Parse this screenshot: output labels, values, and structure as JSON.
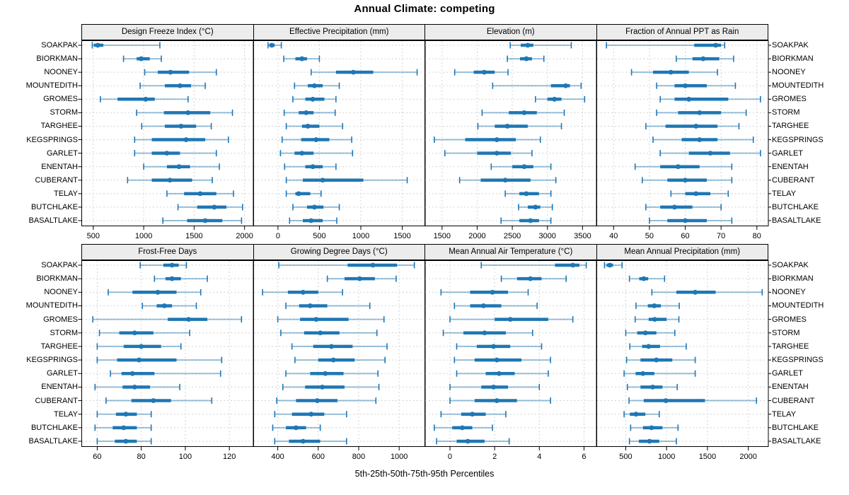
{
  "title": "Annual Climate: competing",
  "axis_label": "5th-25th-50th-75th-95th Percentiles",
  "colors": {
    "accent": "#1f77b4",
    "whisker": "rgba(31,119,180,0.45)",
    "strip_bg": "#ececec",
    "grid": "#d4d4d4",
    "border": "#000000",
    "tick": "#000000"
  },
  "sites": [
    "SOAKPAK",
    "BIORKMAN",
    "NOONEY",
    "MOUNTEDITH",
    "GROMES",
    "STORM",
    "TARGHEE",
    "KEGSPRINGS",
    "GARLET",
    "ENENTAH",
    "CUBERANT",
    "TELAY",
    "BUTCHLAKE",
    "BASALTLAKE"
  ],
  "chart_data": {
    "type": "dotplot",
    "subtype": "percentile-intervals",
    "percentiles": [
      5,
      25,
      50,
      75,
      95
    ],
    "legend_note": "thin segments 5th-25th and 75th-95th, thick bar 25th-75th, dot at median",
    "grid": "dashed",
    "panels": [
      {
        "title": "Design Freeze Index (°C)",
        "xlim": [
          382,
          2083
        ],
        "ticks": [
          {
            "v": 500,
            "label": "500"
          },
          {
            "v": 1000,
            "label": "1000"
          },
          {
            "v": 1500,
            "label": "1500"
          },
          {
            "v": 2000,
            "label": "2000"
          }
        ],
        "values": [
          [
            490,
            505,
            545,
            600,
            1160
          ],
          [
            800,
            930,
            975,
            1060,
            1175
          ],
          [
            1010,
            1140,
            1265,
            1450,
            1720
          ],
          [
            965,
            1210,
            1360,
            1470,
            1610
          ],
          [
            570,
            740,
            1020,
            1110,
            1440
          ],
          [
            930,
            1200,
            1440,
            1660,
            1880
          ],
          [
            980,
            1210,
            1370,
            1520,
            1670
          ],
          [
            910,
            1080,
            1420,
            1610,
            1840
          ],
          [
            910,
            1080,
            1230,
            1360,
            1720
          ],
          [
            1000,
            1230,
            1350,
            1460,
            1750
          ],
          [
            840,
            1080,
            1260,
            1480,
            1680
          ],
          [
            1230,
            1400,
            1560,
            1720,
            1890
          ],
          [
            1340,
            1530,
            1700,
            1820,
            1980
          ],
          [
            1190,
            1430,
            1610,
            1780,
            1970
          ]
        ]
      },
      {
        "title": "Effective Precipitation (mm)",
        "xlim": [
          -298,
          1773
        ],
        "ticks": [
          {
            "v": 0,
            "label": "0"
          },
          {
            "v": 500,
            "label": "500"
          },
          {
            "v": 1000,
            "label": "1000"
          },
          {
            "v": 1500,
            "label": "1500"
          }
        ],
        "values": [
          [
            -120,
            -105,
            -75,
            -40,
            40
          ],
          [
            70,
            210,
            290,
            350,
            500
          ],
          [
            400,
            700,
            910,
            1150,
            1680
          ],
          [
            200,
            360,
            440,
            540,
            740
          ],
          [
            180,
            330,
            420,
            560,
            700
          ],
          [
            75,
            250,
            340,
            430,
            690
          ],
          [
            100,
            290,
            360,
            500,
            780
          ],
          [
            50,
            280,
            460,
            620,
            890
          ],
          [
            30,
            200,
            290,
            430,
            900
          ],
          [
            80,
            330,
            420,
            540,
            700
          ],
          [
            100,
            300,
            540,
            1030,
            1560
          ],
          [
            100,
            210,
            250,
            390,
            520
          ],
          [
            180,
            350,
            440,
            550,
            740
          ],
          [
            140,
            300,
            400,
            540,
            710
          ]
        ]
      },
      {
        "title": "Elevation (m)",
        "xlim": [
          1250,
          3693
        ],
        "ticks": [
          {
            "v": 1500,
            "label": "1500"
          },
          {
            "v": 2000,
            "label": "2000"
          },
          {
            "v": 2500,
            "label": "2500"
          },
          {
            "v": 3000,
            "label": "3000"
          },
          {
            "v": 3500,
            "label": "3500"
          }
        ],
        "values": [
          [
            2470,
            2620,
            2720,
            2800,
            3340
          ],
          [
            2430,
            2610,
            2700,
            2780,
            2950
          ],
          [
            1680,
            1950,
            2100,
            2250,
            2440
          ],
          [
            2220,
            3050,
            3260,
            3320,
            3480
          ],
          [
            2830,
            3000,
            3100,
            3200,
            3530
          ],
          [
            2070,
            2450,
            2670,
            2850,
            3240
          ],
          [
            2010,
            2250,
            2430,
            2720,
            3200
          ],
          [
            1390,
            1830,
            2280,
            2550,
            2900
          ],
          [
            1540,
            2000,
            2280,
            2480,
            2780
          ],
          [
            2200,
            2500,
            2670,
            2800,
            3050
          ],
          [
            1750,
            2050,
            2400,
            2760,
            3120
          ],
          [
            2400,
            2600,
            2700,
            2880,
            3050
          ],
          [
            2590,
            2720,
            2830,
            2900,
            3070
          ],
          [
            2340,
            2600,
            2760,
            2880,
            3050
          ]
        ]
      },
      {
        "title": "Fraction of Annual PPT as Rain",
        "xlim": [
          35.2,
          83.1
        ],
        "ticks": [
          {
            "v": 40,
            "label": "40"
          },
          {
            "v": 50,
            "label": "50"
          },
          {
            "v": 60,
            "label": "60"
          },
          {
            "v": 70,
            "label": "70"
          },
          {
            "v": 80,
            "label": "80"
          }
        ],
        "values": [
          [
            38,
            62.5,
            68.5,
            70,
            71
          ],
          [
            57.5,
            62,
            65,
            69.5,
            73.5
          ],
          [
            45,
            51,
            56,
            61,
            69
          ],
          [
            52,
            57,
            60,
            66,
            74
          ],
          [
            53,
            57,
            61,
            72,
            81
          ],
          [
            52,
            58,
            64,
            70,
            77
          ],
          [
            49,
            54.5,
            63,
            69,
            75
          ],
          [
            51,
            59,
            64,
            69,
            79
          ],
          [
            53,
            61,
            67,
            72.5,
            81
          ],
          [
            46,
            53,
            58,
            64,
            73
          ],
          [
            48,
            55,
            60,
            66,
            73
          ],
          [
            56,
            60,
            63,
            67,
            72
          ],
          [
            49,
            53,
            57,
            62,
            70
          ],
          [
            50,
            55,
            60,
            66,
            73
          ]
        ]
      },
      {
        "title": "Frost-Free Days",
        "xlim": [
          52.8,
          130.7
        ],
        "ticks": [
          {
            "v": 60,
            "label": "60"
          },
          {
            "v": 80,
            "label": "80"
          },
          {
            "v": 100,
            "label": "100"
          },
          {
            "v": 120,
            "label": "120"
          }
        ],
        "values": [
          [
            79.5,
            90,
            94,
            97,
            100.5
          ],
          [
            86,
            91,
            94,
            98,
            110
          ],
          [
            65,
            76,
            87.5,
            96,
            107
          ],
          [
            80.5,
            87,
            90.5,
            94,
            105
          ],
          [
            58,
            92,
            101.5,
            110,
            125.5
          ],
          [
            61,
            70,
            77,
            85.5,
            102
          ],
          [
            60,
            72,
            80,
            89,
            98
          ],
          [
            60,
            69,
            79,
            96,
            116.5
          ],
          [
            66,
            71,
            76,
            86,
            116
          ],
          [
            59,
            71.5,
            77,
            84,
            97.5
          ],
          [
            64,
            75.5,
            85.5,
            93.5,
            112
          ],
          [
            60,
            68.5,
            73,
            78,
            84.5
          ],
          [
            59,
            67,
            72,
            78,
            84.5
          ],
          [
            60,
            68,
            73,
            78,
            84.5
          ]
        ]
      },
      {
        "title": "Growing Degree Days (°C)",
        "xlim": [
          279,
          1127
        ],
        "ticks": [
          {
            "v": 400,
            "label": "400"
          },
          {
            "v": 600,
            "label": "600"
          },
          {
            "v": 800,
            "label": "800"
          },
          {
            "v": 1000,
            "label": "1000"
          }
        ],
        "values": [
          [
            405,
            745,
            870,
            990,
            1075
          ],
          [
            645,
            730,
            805,
            880,
            985
          ],
          [
            325,
            450,
            525,
            600,
            720
          ],
          [
            440,
            505,
            560,
            645,
            855
          ],
          [
            400,
            510,
            590,
            750,
            925
          ],
          [
            415,
            530,
            610,
            705,
            890
          ],
          [
            470,
            575,
            665,
            770,
            940
          ],
          [
            485,
            600,
            675,
            780,
            930
          ],
          [
            440,
            560,
            635,
            725,
            895
          ],
          [
            425,
            535,
            620,
            730,
            900
          ],
          [
            395,
            490,
            595,
            695,
            885
          ],
          [
            385,
            470,
            565,
            630,
            740
          ],
          [
            375,
            440,
            490,
            540,
            610
          ],
          [
            385,
            455,
            525,
            610,
            740
          ]
        ]
      },
      {
        "title": "Mean Annual Air Temperature (°C)",
        "xlim": [
          -1.14,
          6.54
        ],
        "ticks": [
          {
            "v": 0,
            "label": "0"
          },
          {
            "v": 2,
            "label": "2"
          },
          {
            "v": 4,
            "label": "4"
          },
          {
            "v": 6,
            "label": "6"
          }
        ],
        "values": [
          [
            1.4,
            4.7,
            5.5,
            5.8,
            6.1
          ],
          [
            2.3,
            3.0,
            3.6,
            4.1,
            5.2
          ],
          [
            -0.4,
            0.9,
            1.9,
            2.6,
            3.5
          ],
          [
            0.2,
            0.9,
            1.5,
            2.3,
            3.9
          ],
          [
            0.0,
            2.0,
            2.7,
            4.4,
            5.5
          ],
          [
            -0.3,
            0.6,
            1.55,
            2.5,
            3.7
          ],
          [
            0.3,
            1.2,
            1.95,
            2.7,
            4.1
          ],
          [
            0.2,
            1.1,
            2.1,
            3.2,
            4.5
          ],
          [
            0.3,
            1.6,
            2.2,
            2.9,
            4.4
          ],
          [
            0.0,
            1.4,
            1.95,
            2.6,
            4.0
          ],
          [
            0.0,
            1.1,
            2.1,
            3.0,
            4.5
          ],
          [
            -0.4,
            0.5,
            1.0,
            1.6,
            2.5
          ],
          [
            -0.7,
            0.1,
            0.55,
            1.0,
            1.9
          ],
          [
            -0.6,
            0.3,
            0.8,
            1.55,
            2.65
          ]
        ]
      },
      {
        "title": "Mean Annual Precipitation (mm)",
        "xlim": [
          141,
          2241
        ],
        "ticks": [
          {
            "v": 500,
            "label": "500"
          },
          {
            "v": 1000,
            "label": "1000"
          },
          {
            "v": 1500,
            "label": "1500"
          },
          {
            "v": 2000,
            "label": "2000"
          }
        ],
        "values": [
          [
            240,
            265,
            305,
            345,
            455
          ],
          [
            545,
            665,
            720,
            775,
            975
          ],
          [
            820,
            1120,
            1350,
            1600,
            2170
          ],
          [
            625,
            770,
            850,
            930,
            1155
          ],
          [
            615,
            780,
            855,
            1000,
            1150
          ],
          [
            500,
            640,
            740,
            875,
            1100
          ],
          [
            550,
            700,
            780,
            920,
            1240
          ],
          [
            510,
            680,
            875,
            1070,
            1350
          ],
          [
            480,
            620,
            710,
            850,
            1350
          ],
          [
            520,
            680,
            830,
            950,
            1130
          ],
          [
            540,
            720,
            990,
            1470,
            2100
          ],
          [
            480,
            550,
            625,
            740,
            910
          ],
          [
            560,
            710,
            815,
            950,
            1140
          ],
          [
            545,
            660,
            790,
            910,
            1120
          ]
        ]
      }
    ]
  }
}
